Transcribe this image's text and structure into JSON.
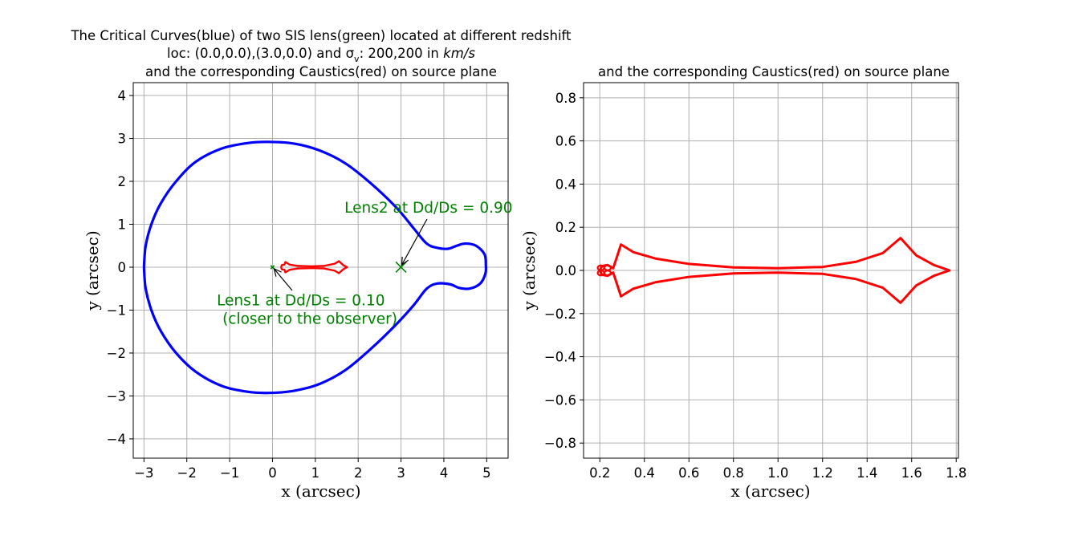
{
  "chart_data": [
    {
      "type": "scatter",
      "title_lines": [
        "The Critical Curves(blue) of two SIS lens(green) located at different redshift",
        "loc: (0.0,0.0),(3.0,0.0) and σ",
        ": 200,200 in ",
        "km/s",
        "and the corresponding Caustics(red) on source plane"
      ],
      "sigma_sub": "v",
      "xlabel": "x (arcsec)",
      "ylabel": "y (arcsec)",
      "xlim": [
        -3.25,
        5.5
      ],
      "ylim": [
        -4.45,
        4.3
      ],
      "xticks": [
        -3,
        -2,
        -1,
        0,
        1,
        2,
        3,
        4,
        5
      ],
      "xtick_labels": [
        "−3",
        "−2",
        "−1",
        "0",
        "1",
        "2",
        "3",
        "4",
        "5"
      ],
      "yticks": [
        -4,
        -3,
        -2,
        -1,
        0,
        1,
        2,
        3,
        4
      ],
      "ytick_labels": [
        "−4",
        "−3",
        "−2",
        "−1",
        "0",
        "1",
        "2",
        "3",
        "4"
      ],
      "grid": true,
      "colors": {
        "critical": "#0000ff",
        "caustic": "#ff0000",
        "lens": "#008000",
        "grid": "#b0b0b0"
      },
      "series": [
        {
          "kind": "critical_curve",
          "color": "#0000ff",
          "points": [
            [
              -3.0,
              0.0
            ],
            [
              -2.96,
              -0.5
            ],
            [
              -2.82,
              -1.02
            ],
            [
              -2.6,
              -1.5
            ],
            [
              -2.25,
              -2.0
            ],
            [
              -1.8,
              -2.43
            ],
            [
              -1.2,
              -2.76
            ],
            [
              -0.6,
              -2.9
            ],
            [
              -0.1,
              -2.93
            ],
            [
              0.5,
              -2.88
            ],
            [
              1.1,
              -2.72
            ],
            [
              1.7,
              -2.4
            ],
            [
              2.3,
              -1.9
            ],
            [
              2.9,
              -1.32
            ],
            [
              3.3,
              -0.88
            ],
            [
              3.6,
              -0.5
            ],
            [
              3.85,
              -0.38
            ],
            [
              4.15,
              -0.4
            ],
            [
              4.35,
              -0.48
            ],
            [
              4.6,
              -0.5
            ],
            [
              4.85,
              -0.38
            ],
            [
              4.97,
              -0.15
            ],
            [
              4.98,
              0.05
            ],
            [
              4.95,
              0.3
            ],
            [
              4.75,
              0.5
            ],
            [
              4.5,
              0.55
            ],
            [
              4.3,
              0.5
            ],
            [
              4.1,
              0.43
            ],
            [
              3.85,
              0.45
            ],
            [
              3.6,
              0.55
            ],
            [
              3.3,
              0.9
            ],
            [
              2.9,
              1.38
            ],
            [
              2.3,
              1.95
            ],
            [
              1.7,
              2.42
            ],
            [
              1.1,
              2.72
            ],
            [
              0.5,
              2.88
            ],
            [
              -0.1,
              2.92
            ],
            [
              -0.6,
              2.89
            ],
            [
              -1.2,
              2.76
            ],
            [
              -1.8,
              2.45
            ],
            [
              -2.25,
              2.0
            ],
            [
              -2.6,
              1.5
            ],
            [
              -2.82,
              1.02
            ],
            [
              -2.96,
              0.5
            ],
            [
              -3.0,
              0.0
            ]
          ]
        },
        {
          "kind": "inner_caustic",
          "color": "#ff0000",
          "points": [
            [
              0.2,
              0.0
            ],
            [
              0.22,
              0.05
            ],
            [
              0.28,
              0.06
            ],
            [
              0.3,
              0.12
            ],
            [
              0.4,
              0.06
            ],
            [
              0.6,
              0.03
            ],
            [
              0.9,
              0.02
            ],
            [
              1.2,
              0.03
            ],
            [
              1.45,
              0.08
            ],
            [
              1.55,
              0.14
            ],
            [
              1.65,
              0.05
            ],
            [
              1.74,
              0.0
            ],
            [
              1.65,
              -0.05
            ],
            [
              1.55,
              -0.14
            ],
            [
              1.45,
              -0.08
            ],
            [
              1.2,
              -0.03
            ],
            [
              0.9,
              -0.02
            ],
            [
              0.6,
              -0.03
            ],
            [
              0.4,
              -0.06
            ],
            [
              0.3,
              -0.12
            ],
            [
              0.28,
              -0.06
            ],
            [
              0.22,
              -0.05
            ],
            [
              0.2,
              0.0
            ]
          ]
        },
        {
          "kind": "lens",
          "name": "Lens1 at Dd/Ds = 0.10",
          "subname": "(closer to the observer)",
          "x": 0.0,
          "y": 0.0,
          "marker": "x-small"
        },
        {
          "kind": "lens",
          "name": "Lens2 at Dd/Ds = 0.90",
          "x": 3.0,
          "y": 0.0,
          "marker": "x-large"
        }
      ],
      "annotations": [
        {
          "text": "Lens2 at Dd/Ds = 0.90",
          "text_x": 1.68,
          "text_y": 1.38,
          "arrow_to": [
            3.0,
            0.0
          ]
        },
        {
          "text": "Lens1 at Dd/Ds = 0.10",
          "text2": "(closer to the observer)",
          "text_x": -1.3,
          "text_y": -0.78,
          "arrow_to": [
            0.0,
            0.0
          ]
        }
      ]
    },
    {
      "type": "scatter",
      "title": "and the corresponding Caustics(red) on source plane",
      "xlabel": "x (arcsec)",
      "ylabel": "y (arcsec)",
      "xlim": [
        0.127,
        1.81
      ],
      "ylim": [
        -0.87,
        0.87
      ],
      "xticks": [
        0.2,
        0.4,
        0.6,
        0.8,
        1.0,
        1.2,
        1.4,
        1.6,
        1.8
      ],
      "xtick_labels": [
        "0.2",
        "0.4",
        "0.6",
        "0.8",
        "1.0",
        "1.2",
        "1.4",
        "1.6",
        "1.8"
      ],
      "yticks": [
        -0.8,
        -0.6,
        -0.4,
        -0.2,
        0.0,
        0.2,
        0.4,
        0.6,
        0.8
      ],
      "ytick_labels": [
        "−0.8",
        "−0.6",
        "−0.4",
        "−0.2",
        "0.0",
        "0.2",
        "0.4",
        "0.6",
        "0.8"
      ],
      "grid": true,
      "series": [
        {
          "kind": "caustic",
          "color": "#ff0000",
          "points": [
            [
              0.2,
              0.0
            ],
            [
              0.21,
              0.02
            ],
            [
              0.235,
              0.025
            ],
            [
              0.26,
              0.01
            ],
            [
              0.295,
              0.12
            ],
            [
              0.35,
              0.085
            ],
            [
              0.45,
              0.055
            ],
            [
              0.6,
              0.03
            ],
            [
              0.8,
              0.014
            ],
            [
              1.0,
              0.01
            ],
            [
              1.2,
              0.016
            ],
            [
              1.35,
              0.04
            ],
            [
              1.47,
              0.08
            ],
            [
              1.55,
              0.15
            ],
            [
              1.62,
              0.07
            ],
            [
              1.7,
              0.025
            ],
            [
              1.77,
              0.0
            ],
            [
              1.7,
              -0.025
            ],
            [
              1.62,
              -0.07
            ],
            [
              1.55,
              -0.15
            ],
            [
              1.47,
              -0.08
            ],
            [
              1.35,
              -0.04
            ],
            [
              1.2,
              -0.016
            ],
            [
              1.0,
              -0.01
            ],
            [
              0.8,
              -0.014
            ],
            [
              0.6,
              -0.03
            ],
            [
              0.45,
              -0.055
            ],
            [
              0.35,
              -0.085
            ],
            [
              0.295,
              -0.12
            ],
            [
              0.26,
              -0.01
            ],
            [
              0.235,
              -0.025
            ],
            [
              0.21,
              -0.02
            ],
            [
              0.2,
              0.0
            ]
          ]
        }
      ]
    }
  ]
}
